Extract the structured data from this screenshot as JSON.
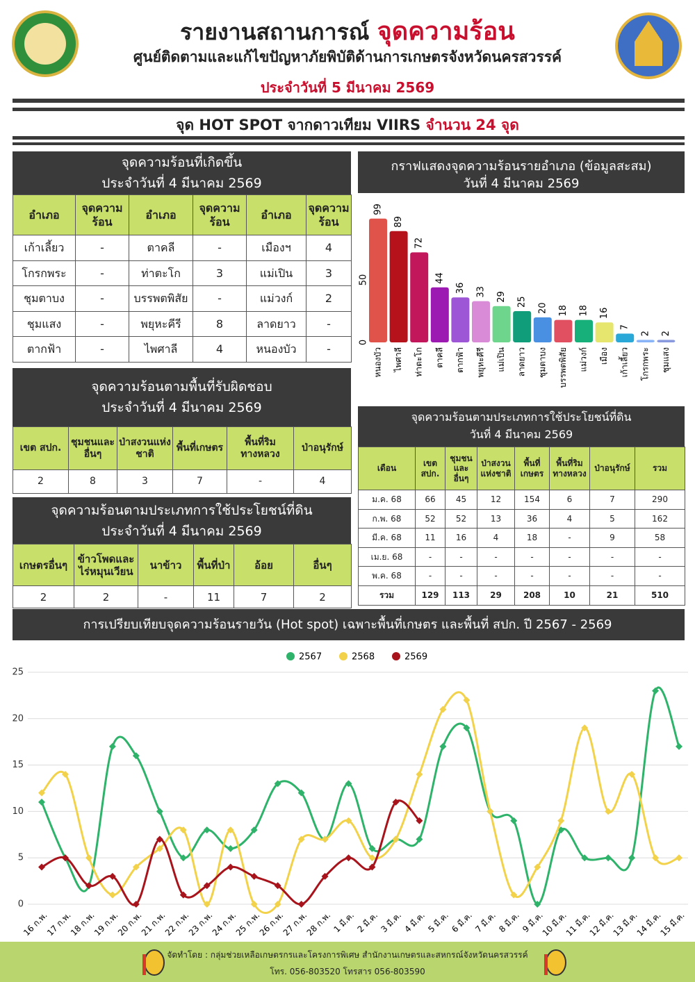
{
  "header": {
    "title": "รายงานสถานการณ์",
    "title_highlight": "จุดความร้อน",
    "subtitle": "ศูนย์ติดตามและแก้ไขปัญหาภัยพิบัติด้านการเกษตรจังหวัดนครสวรรค์",
    "date": "ประจำวันที่ 5 มีนาคม 2569"
  },
  "banner": {
    "text": "จุด HOT SPOT จากดาวเทียม VIIRS",
    "highlight": "จำนวน 24 จุด"
  },
  "tables": [
    {
      "title": "จุดความร้อนที่เกิดขึ้น",
      "subtitle": "ประจำวันที่ 4 มีนาคม 2569",
      "headers": [
        "อำเภอ",
        "จุดความร้อน",
        "อำเภอ",
        "จุดความร้อน",
        "อำเภอ",
        "จุดความร้อน"
      ],
      "rows": [
        [
          "เก้าเลี้ยว",
          "-",
          "ตาคลี",
          "-",
          "เมืองฯ",
          "4"
        ],
        [
          "โกรกพระ",
          "-",
          "ท่าตะโก",
          "3",
          "แม่เปิน",
          "3"
        ],
        [
          "ชุมตาบง",
          "-",
          "บรรพตพิสัย",
          "-",
          "แม่วงก์",
          "2"
        ],
        [
          "ชุมแสง",
          "-",
          "พยุหะคีรี",
          "8",
          "ลาดยาว",
          "-"
        ],
        [
          "ตากฟ้า",
          "-",
          "ไพศาลี",
          "4",
          "หนองบัว",
          "-"
        ]
      ]
    },
    {
      "title": "จุดความร้อนตามพื้นที่รับผิดชอบ",
      "subtitle": "ประจำวันที่ 4 มีนาคม 2569",
      "headers": [
        "เขต สปก.",
        "ชุมชนและอื่นๆ",
        "ป่าสงวนแห่งชาติ",
        "พื้นที่เกษตร",
        "พื้นที่ริมทางหลวง",
        "ป่าอนุรักษ์"
      ],
      "rows": [
        [
          "2",
          "8",
          "3",
          "7",
          "-",
          "4"
        ]
      ]
    },
    {
      "title": "จุดความร้อนตามประเภทการใช้ประโยชน์ที่ดิน",
      "subtitle": "ประจำวันที่ 4 มีนาคม 2569",
      "headers": [
        "เกษตรอื่นๆ",
        "ข้าวโพดและไร่หมุนเวียน",
        "นาข้าว",
        "พื้นที่ป่า",
        "อ้อย",
        "อื่นๆ"
      ],
      "rows": [
        [
          "2",
          "2",
          "-",
          "11",
          "7",
          "2"
        ]
      ]
    },
    {
      "title": "จุดความร้อนตามประเภทการใช้ประโยชน์ที่ดิน",
      "subtitle": "วันที่ 4 มีนาคม  2569",
      "headers": [
        "เดือน",
        "เขต สปก.",
        "ชุมชนและอื่นๆ",
        "ป่าสงวนแห่งชาติ",
        "พื้นที่เกษตร",
        "พื้นที่ริมทางหลวง",
        "ป่าอนุรักษ์",
        "รวม"
      ],
      "rows": [
        [
          "ม.ค. 68",
          "66",
          "45",
          "12",
          "154",
          "6",
          "7",
          "290"
        ],
        [
          "ก.พ. 68",
          "52",
          "52",
          "13",
          "36",
          "4",
          "5",
          "162"
        ],
        [
          "มี.ค. 68",
          "11",
          "16",
          "4",
          "18",
          "-",
          "9",
          "58"
        ],
        [
          "เม.ย. 68",
          "-",
          "-",
          "-",
          "-",
          "-",
          "-",
          "-"
        ],
        [
          "พ.ค. 68",
          "-",
          "-",
          "-",
          "-",
          "-",
          "-",
          "-"
        ],
        [
          "รวม",
          "129",
          "113",
          "29",
          "208",
          "10",
          "21",
          "510"
        ]
      ]
    }
  ],
  "chart_data": [
    {
      "type": "bar",
      "title": "กราฟแสดงจุดความร้อนรายอำเภอ (ข้อมูลสะสม)",
      "subtitle": "วันที่ 4 มีนาคม 2569",
      "categories": [
        "หนองบัว",
        "ไพศาลี",
        "ท่าตะโก",
        "ตาคลี",
        "ตากฟ้า",
        "พยุหะคีรี",
        "แม่เปิน",
        "ลาดยาว",
        "ชุมตาบง",
        "บรรพตพิสัย",
        "แม่วงก์",
        "เมือง",
        "เก้าเลี้ยว",
        "โกรกพระ",
        "ชุมแสง"
      ],
      "values": [
        99,
        89,
        72,
        44,
        36,
        33,
        29,
        25,
        20,
        18,
        18,
        16,
        7,
        2,
        2
      ],
      "colors": [
        "#e0534a",
        "#b5121b",
        "#c2185b",
        "#9c1ab1",
        "#9c56d6",
        "#d98bd8",
        "#6dd68c",
        "#0f9d7a",
        "#4a90e2",
        "#e05060",
        "#18b07a",
        "#e6e66e",
        "#2aa8d8",
        "#8ab4f8",
        "#8899dd"
      ],
      "ylim": [
        0,
        100
      ],
      "yticks": [
        0,
        50
      ]
    },
    {
      "type": "line",
      "title": "การเปรียบเทียบจุดความร้อนรายวัน (Hot spot)  เฉพาะพื้นที่เกษตร และพื้นที่ สปก. ปี 2567 - 2569",
      "categories": [
        "16 ก.พ.",
        "17 ก.พ.",
        "18 ก.พ.",
        "19 ก.พ.",
        "20 ก.พ.",
        "21 ก.พ.",
        "22 ก.พ.",
        "23 ก.พ.",
        "24 ก.พ.",
        "25 ก.พ.",
        "26 ก.พ.",
        "27 ก.พ.",
        "28 ก.พ.",
        "1 มี.ค.",
        "2 มี.ค.",
        "3 มี.ค.",
        "4 มี.ค.",
        "5 มี.ค.",
        "6 มี.ค.",
        "7 มี.ค.",
        "8 มี.ค.",
        "9 มี.ค.",
        "10 มี.ค.",
        "11 มี.ค.",
        "12 มี.ค.",
        "13 มี.ค.",
        "14 มี.ค.",
        "15 มี.ค."
      ],
      "series": [
        {
          "name": "2567",
          "color": "#2fb36b",
          "values": [
            11,
            5,
            2,
            17,
            16,
            10,
            5,
            8,
            6,
            8,
            13,
            12,
            7,
            13,
            6,
            7,
            7,
            17,
            19,
            10,
            9,
            0,
            8,
            5,
            5,
            5,
            23,
            17
          ]
        },
        {
          "name": "2568",
          "color": "#f2d24b",
          "values": [
            12,
            14,
            5,
            1,
            4,
            6,
            8,
            0,
            8,
            0,
            0,
            7,
            7,
            9,
            5,
            7,
            14,
            21,
            22,
            10,
            1,
            4,
            9,
            19,
            10,
            14,
            5,
            5
          ]
        },
        {
          "name": "2569",
          "color": "#a8141c",
          "values": [
            4,
            5,
            2,
            3,
            0,
            7,
            1,
            2,
            4,
            3,
            2,
            0,
            3,
            5,
            4,
            11,
            9,
            null,
            null,
            null,
            null,
            null,
            null,
            null,
            null,
            null,
            null,
            null
          ]
        }
      ],
      "ylim": [
        0,
        25
      ],
      "yticks": [
        0,
        5,
        10,
        15,
        20,
        25
      ],
      "grid": true
    }
  ],
  "footer": {
    "credit": "จัดทำโดย : กลุ่มช่วยเหลือเกษตรกรและโครงการพิเศษ สำนักงานเกษตรและสหกรณ์จังหวัดนครสวรรค์",
    "contact": "โทร. 056-803520 โทรสาร 056-803590"
  }
}
